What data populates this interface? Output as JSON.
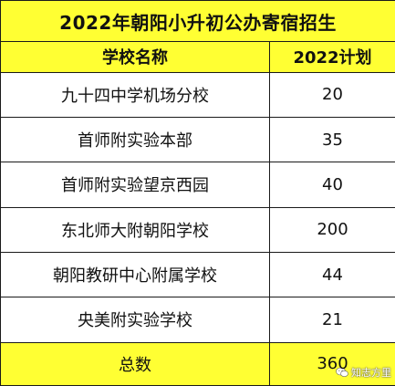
{
  "title": "2022年朝阳小升初公办寄宿招生",
  "headers": {
    "school": "学校名称",
    "plan": "2022计划"
  },
  "rows": [
    {
      "school": "九十四中学机场分校",
      "plan": "20"
    },
    {
      "school": "首师附实验本部",
      "plan": "35"
    },
    {
      "school": "首师附实验望京西园",
      "plan": "40"
    },
    {
      "school": "东北师大附朝阳学校",
      "plan": "200"
    },
    {
      "school": "朝阳教研中心附属学校",
      "plan": "44"
    },
    {
      "school": "央美附实验学校",
      "plan": "21"
    }
  ],
  "total": {
    "label": "总数",
    "value": "360"
  },
  "watermark": {
    "text": "知志方里",
    "icon": "wechat-icon"
  },
  "colors": {
    "highlight": "#ffff33",
    "border": "#1a1a1a"
  }
}
